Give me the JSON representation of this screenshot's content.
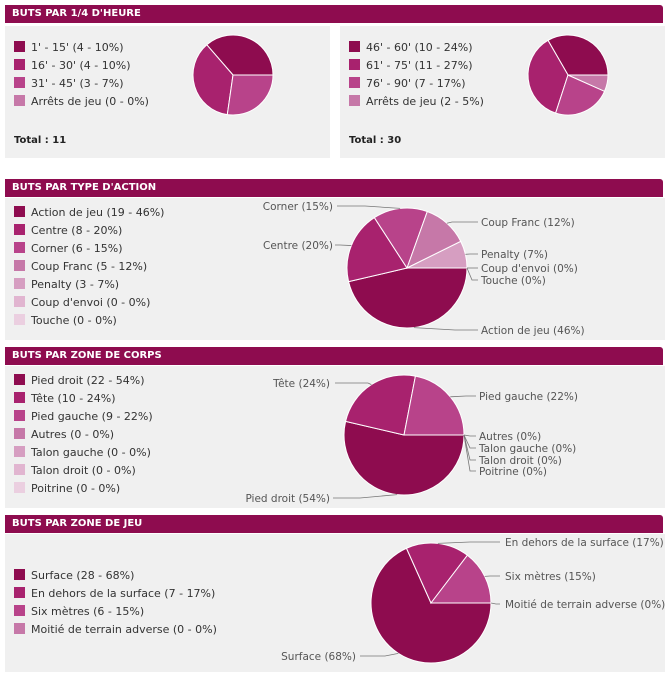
{
  "colors": {
    "header_bg": "#8e0c4f",
    "panel_bg": "#f0f0f0",
    "palette": [
      "#8e0c4f",
      "#a8226e",
      "#b8438a",
      "#c678a8",
      "#d69ec1",
      "#e1b5d0",
      "#ebcfe0"
    ]
  },
  "sections": {
    "quarter": {
      "title": "BUTS PAR 1/4 D'HEURE"
    },
    "action": {
      "title": "BUTS PAR TYPE D'ACTION"
    },
    "body": {
      "title": "BUTS PAR ZONE DE CORPS"
    },
    "zone": {
      "title": "BUTS PAR ZONE DE JEU"
    }
  },
  "chart_data": [
    {
      "type": "pie",
      "section": "BUTS PAR 1/4 D'HEURE",
      "legend": [
        "1' - 15' (4 - 10%)",
        "16' - 30' (4 - 10%)",
        "31' - 45' (3 - 7%)",
        "Arrêts de jeu (0 - 0%)"
      ],
      "categories": [
        "1' - 15'",
        "16' - 30'",
        "31' - 45'",
        "Arrêts de jeu"
      ],
      "values": [
        4,
        4,
        3,
        0
      ],
      "percents": [
        10,
        10,
        7,
        0
      ],
      "total_label": "Total : 11"
    },
    {
      "type": "pie",
      "section": "BUTS PAR 1/4 D'HEURE",
      "legend": [
        "46' - 60' (10 - 24%)",
        "61' - 75' (11 - 27%)",
        "76' - 90' (7 - 17%)",
        "Arrêts de jeu (2 - 5%)"
      ],
      "categories": [
        "46' - 60'",
        "61' - 75'",
        "76' - 90'",
        "Arrêts de jeu"
      ],
      "values": [
        10,
        11,
        7,
        2
      ],
      "percents": [
        24,
        27,
        17,
        5
      ],
      "total_label": "Total : 30"
    },
    {
      "type": "pie",
      "section": "BUTS PAR TYPE D'ACTION",
      "legend": [
        "Action de jeu (19 - 46%)",
        "Centre (8 - 20%)",
        "Corner (6 - 15%)",
        "Coup Franc (5 - 12%)",
        "Penalty (3 - 7%)",
        "Coup d'envoi (0 - 0%)",
        "Touche (0 - 0%)"
      ],
      "categories": [
        "Action de jeu",
        "Centre",
        "Corner",
        "Coup Franc",
        "Penalty",
        "Coup d'envoi",
        "Touche"
      ],
      "values": [
        19,
        8,
        6,
        5,
        3,
        0,
        0
      ],
      "percents": [
        46,
        20,
        15,
        12,
        7,
        0,
        0
      ],
      "slice_labels": [
        "Action de jeu (46%)",
        "Centre (20%)",
        "Corner (15%)",
        "Coup Franc (12%)",
        "Penalty (7%)",
        "Coup d'envoi (0%)",
        "Touche (0%)"
      ]
    },
    {
      "type": "pie",
      "section": "BUTS PAR ZONE DE CORPS",
      "legend": [
        "Pied droit (22 - 54%)",
        "Tête (10 - 24%)",
        "Pied gauche (9 - 22%)",
        "Autres (0 - 0%)",
        "Talon gauche (0 - 0%)",
        "Talon droit (0 - 0%)",
        "Poitrine (0 - 0%)"
      ],
      "categories": [
        "Pied droit",
        "Tête",
        "Pied gauche",
        "Autres",
        "Talon gauche",
        "Talon droit",
        "Poitrine"
      ],
      "values": [
        22,
        10,
        9,
        0,
        0,
        0,
        0
      ],
      "percents": [
        54,
        24,
        22,
        0,
        0,
        0,
        0
      ],
      "slice_labels": [
        "Pied droit (54%)",
        "Tête (24%)",
        "Pied gauche (22%)",
        "Autres (0%)",
        "Talon gauche (0%)",
        "Talon droit (0%)",
        "Poitrine (0%)"
      ]
    },
    {
      "type": "pie",
      "section": "BUTS PAR ZONE DE JEU",
      "legend": [
        "Surface (28 - 68%)",
        "En dehors de la surface (7 - 17%)",
        "Six mètres (6 - 15%)",
        "Moitié de terrain adverse (0 - 0%)"
      ],
      "categories": [
        "Surface",
        "En dehors de la surface",
        "Six mètres",
        "Moitié de terrain adverse"
      ],
      "values": [
        28,
        7,
        6,
        0
      ],
      "percents": [
        68,
        17,
        15,
        0
      ],
      "slice_labels": [
        "Surface (68%)",
        "En dehors de la surface (17%)",
        "Six mètres (15%)",
        "Moitié de terrain adverse (0%)"
      ]
    }
  ]
}
